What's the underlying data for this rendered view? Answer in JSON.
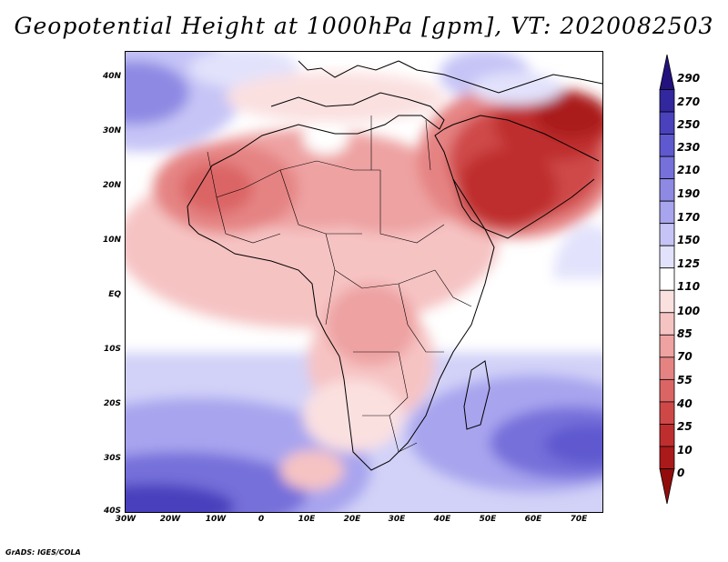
{
  "title": "Geopotential Height at 1000hPa [gpm], VT: 2020082503",
  "credit": "GrADS: IGES/COLA",
  "map": {
    "lat_labels": [
      "40N",
      "30N",
      "20N",
      "10N",
      "EQ",
      "10S",
      "20S",
      "30S",
      "40S"
    ],
    "lon_labels": [
      "30W",
      "20W",
      "10W",
      "0",
      "10E",
      "20E",
      "30E",
      "40E",
      "50E",
      "60E",
      "70E"
    ],
    "lat_range": [
      -40,
      45
    ],
    "lon_range": [
      -30,
      75
    ]
  },
  "colorbar": {
    "labels": [
      "290",
      "270",
      "250",
      "230",
      "210",
      "190",
      "170",
      "150",
      "125",
      "110",
      "100",
      "85",
      "70",
      "55",
      "40",
      "25",
      "10",
      "0"
    ],
    "colors": [
      "#23127e",
      "#33279e",
      "#4a41bd",
      "#5f59cf",
      "#7670da",
      "#8e89e3",
      "#a8a4ee",
      "#c6c4f6",
      "#e2e2fc",
      "#ffffff",
      "#fbe0e0",
      "#f6c3c3",
      "#eea2a2",
      "#e58383",
      "#db6565",
      "#cf4848",
      "#bf2e2e",
      "#aa1a1a",
      "#930c0c"
    ]
  }
}
